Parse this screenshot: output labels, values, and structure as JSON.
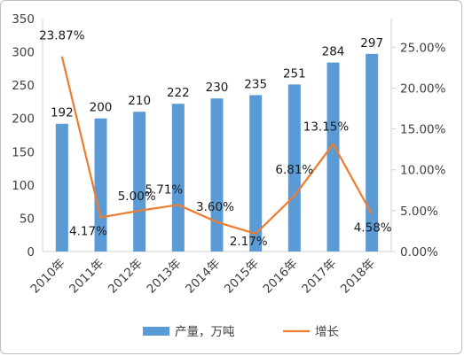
{
  "chart_data": {
    "type": "bar",
    "categories": [
      "2010年",
      "2011年",
      "2012年",
      "2013年",
      "2014年",
      "2015年",
      "2016年",
      "2017年",
      "2018年"
    ],
    "series": [
      {
        "name": "产量，万吨",
        "type": "bar",
        "axis": "left",
        "color": "#5B9BD5",
        "values": [
          192,
          200,
          210,
          222,
          230,
          235,
          251,
          284,
          297
        ],
        "labels": [
          "192",
          "200",
          "210",
          "222",
          "230",
          "235",
          "251",
          "284",
          "297"
        ]
      },
      {
        "name": "增长",
        "type": "line",
        "axis": "right",
        "color": "#ED7D31",
        "values": [
          23.87,
          4.17,
          5.0,
          5.71,
          3.6,
          2.17,
          6.81,
          13.15,
          4.58
        ],
        "labels": [
          "23.87%",
          "4.17%",
          "5.00%",
          "5.71%",
          "3.60%",
          "2.17%",
          "6.81%",
          "13.15%",
          "4.58%"
        ]
      }
    ],
    "y_left": {
      "ylim": [
        0,
        350
      ],
      "ticks": [
        0,
        50,
        100,
        150,
        200,
        250,
        300,
        350
      ],
      "tick_labels": [
        "0",
        "50",
        "100",
        "150",
        "200",
        "250",
        "300",
        "350"
      ]
    },
    "y_right": {
      "ylim": [
        0,
        28.5
      ],
      "ticks": [
        0,
        5,
        10,
        15,
        20,
        25
      ],
      "tick_labels": [
        "0.00%",
        "5.00%",
        "10.00%",
        "15.00%",
        "20.00%",
        "25.00%"
      ]
    },
    "legend_position": "bottom",
    "grid": false
  }
}
